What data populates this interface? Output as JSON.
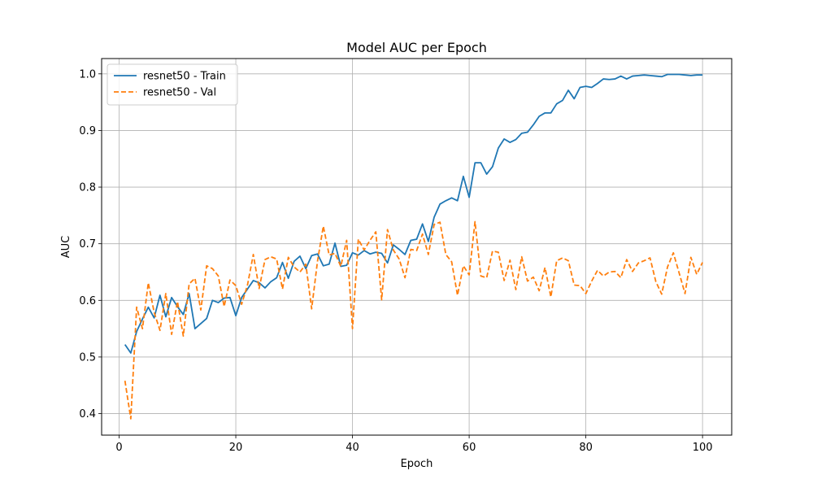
{
  "chart_data": {
    "type": "line",
    "title": "Model AUC per Epoch",
    "xlabel": "Epoch",
    "ylabel": "AUC",
    "xlim": [
      -3,
      105
    ],
    "ylim": [
      0.362,
      1.027
    ],
    "xticks": [
      0,
      20,
      40,
      60,
      80,
      100
    ],
    "yticks": [
      0.4,
      0.5,
      0.6,
      0.7,
      0.8,
      0.9,
      1.0
    ],
    "ytick_labels": [
      "0.4",
      "0.5",
      "0.6",
      "0.7",
      "0.8",
      "0.9",
      "1.0"
    ],
    "grid": true,
    "legend_position": "top-left",
    "x": [
      1,
      2,
      3,
      4,
      5,
      6,
      7,
      8,
      9,
      10,
      11,
      12,
      13,
      14,
      15,
      16,
      17,
      18,
      19,
      20,
      21,
      22,
      23,
      24,
      25,
      26,
      27,
      28,
      29,
      30,
      31,
      32,
      33,
      34,
      35,
      36,
      37,
      38,
      39,
      40,
      41,
      42,
      43,
      44,
      45,
      46,
      47,
      48,
      49,
      50,
      51,
      52,
      53,
      54,
      55,
      56,
      57,
      58,
      59,
      60,
      61,
      62,
      63,
      64,
      65,
      66,
      67,
      68,
      69,
      70,
      71,
      72,
      73,
      74,
      75,
      76,
      77,
      78,
      79,
      80,
      81,
      82,
      83,
      84,
      85,
      86,
      87,
      88,
      89,
      90,
      91,
      92,
      93,
      94,
      95,
      96,
      97,
      98,
      99,
      100
    ],
    "series": [
      {
        "name": "resnet50 - Train",
        "color": "#1f77b4",
        "style": "solid",
        "values": [
          0.522,
          0.507,
          0.545,
          0.567,
          0.588,
          0.569,
          0.609,
          0.571,
          0.605,
          0.589,
          0.575,
          0.612,
          0.55,
          0.559,
          0.568,
          0.6,
          0.596,
          0.604,
          0.605,
          0.573,
          0.605,
          0.62,
          0.635,
          0.631,
          0.622,
          0.633,
          0.64,
          0.667,
          0.639,
          0.669,
          0.678,
          0.656,
          0.679,
          0.682,
          0.661,
          0.664,
          0.701,
          0.66,
          0.662,
          0.684,
          0.68,
          0.688,
          0.682,
          0.685,
          0.683,
          0.666,
          0.698,
          0.69,
          0.681,
          0.706,
          0.708,
          0.735,
          0.704,
          0.747,
          0.77,
          0.776,
          0.781,
          0.776,
          0.819,
          0.782,
          0.843,
          0.843,
          0.823,
          0.836,
          0.869,
          0.885,
          0.879,
          0.884,
          0.895,
          0.897,
          0.91,
          0.925,
          0.931,
          0.931,
          0.947,
          0.953,
          0.971,
          0.956,
          0.976,
          0.978,
          0.976,
          0.983,
          0.991,
          0.99,
          0.991,
          0.996,
          0.991,
          0.996,
          0.997,
          0.998,
          0.997,
          0.996,
          0.995,
          0.999,
          0.999,
          0.999,
          0.998,
          0.997,
          0.998,
          0.998
        ]
      },
      {
        "name": "resnet50 - Val",
        "color": "#ff7f0e",
        "style": "dashed",
        "values": [
          0.458,
          0.391,
          0.588,
          0.55,
          0.631,
          0.579,
          0.547,
          0.612,
          0.54,
          0.598,
          0.537,
          0.629,
          0.639,
          0.583,
          0.661,
          0.656,
          0.643,
          0.589,
          0.636,
          0.626,
          0.593,
          0.627,
          0.681,
          0.621,
          0.672,
          0.677,
          0.673,
          0.62,
          0.676,
          0.659,
          0.65,
          0.664,
          0.585,
          0.669,
          0.731,
          0.68,
          0.683,
          0.66,
          0.706,
          0.55,
          0.708,
          0.689,
          0.706,
          0.721,
          0.601,
          0.725,
          0.689,
          0.673,
          0.64,
          0.69,
          0.688,
          0.717,
          0.681,
          0.734,
          0.738,
          0.681,
          0.668,
          0.609,
          0.661,
          0.645,
          0.739,
          0.643,
          0.64,
          0.687,
          0.685,
          0.635,
          0.671,
          0.619,
          0.677,
          0.634,
          0.641,
          0.617,
          0.658,
          0.606,
          0.67,
          0.675,
          0.67,
          0.627,
          0.626,
          0.612,
          0.634,
          0.653,
          0.643,
          0.65,
          0.651,
          0.64,
          0.672,
          0.651,
          0.666,
          0.67,
          0.675,
          0.633,
          0.611,
          0.659,
          0.684,
          0.648,
          0.612,
          0.676,
          0.646,
          0.667
        ]
      }
    ]
  }
}
